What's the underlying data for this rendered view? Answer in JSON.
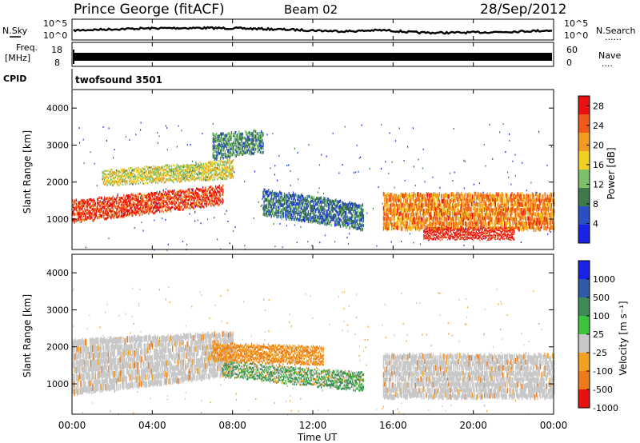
{
  "header": {
    "station": "Prince George (fitACF)",
    "beam": "Beam 02",
    "date": "28/Sep/2012"
  },
  "nsky_panel": {
    "left_label": "N.Sky",
    "right_label": "N.Search",
    "left_ticks": [
      "10^5",
      "10^0"
    ],
    "right_ticks": [
      "10^5",
      "10^0"
    ],
    "right_dots": "......"
  },
  "freq_panel": {
    "left_label_1": "Freq.",
    "left_label_2": "[MHz]",
    "left_ticks": [
      "18",
      "8"
    ],
    "right_ticks": [
      "60",
      "0"
    ],
    "right_label": "Nave",
    "right_dots": "...."
  },
  "cpid_panel": {
    "label": "CPID",
    "program": "twofsound 3501"
  },
  "colors": {
    "power_scale": [
      "#1a22e8",
      "#2a4fc4",
      "#3e7a4a",
      "#7cc06a",
      "#f0d020",
      "#f39a20",
      "#ef5a1a",
      "#e81010"
    ],
    "velocity_scale": [
      "#1a22e8",
      "#2f5aa8",
      "#3f8a56",
      "#3cc43c",
      "#c8c8c8",
      "#f3a020",
      "#ee7a1a",
      "#e81010"
    ],
    "ground_scatter": "#c8c8c8"
  },
  "chart_data": [
    {
      "type": "heatmap",
      "title": "",
      "xlabel": "Time UT",
      "ylabel": "Slant Range [km]",
      "xlim": [
        "00:00",
        "24:00"
      ],
      "ylim": [
        180,
        4500
      ],
      "x_ticks": [
        "00:00",
        "04:00",
        "08:00",
        "12:00",
        "16:00",
        "20:00",
        "00:00"
      ],
      "y_ticks": [
        1000,
        2000,
        3000,
        4000
      ],
      "colorbar": {
        "label": "Power [dB]",
        "ticks": [
          4,
          8,
          12,
          16,
          20,
          24,
          28
        ],
        "range": [
          0,
          30
        ]
      },
      "features": [
        {
          "start_h": 0.0,
          "end_h": 7.5,
          "range_start": [
            900,
            1500
          ],
          "range_end": [
            1400,
            1900
          ],
          "dB": 26
        },
        {
          "start_h": 1.5,
          "end_h": 8.0,
          "range_start": [
            1900,
            2300
          ],
          "range_end": [
            2100,
            2600
          ],
          "dB": 16
        },
        {
          "start_h": 7.0,
          "end_h": 9.5,
          "range_start": [
            2600,
            3300
          ],
          "range_end": [
            2800,
            3400
          ],
          "dB": 10
        },
        {
          "start_h": 9.5,
          "end_h": 14.5,
          "range_start": [
            1100,
            1800
          ],
          "range_end": [
            700,
            1400
          ],
          "dB": 8
        },
        {
          "start_h": 15.5,
          "end_h": 24.0,
          "range_start": [
            700,
            1700
          ],
          "range_end": [
            700,
            1700
          ],
          "dB": 22
        },
        {
          "start_h": 17.5,
          "end_h": 22.0,
          "range_start": [
            450,
            750
          ],
          "range_end": [
            450,
            750
          ],
          "dB": 28
        }
      ]
    },
    {
      "type": "heatmap",
      "title": "",
      "xlabel": "Time UT",
      "ylabel": "Slant Range [km]",
      "xlim": [
        "00:00",
        "24:00"
      ],
      "ylim": [
        180,
        4500
      ],
      "x_ticks": [
        "00:00",
        "04:00",
        "08:00",
        "12:00",
        "16:00",
        "20:00",
        "00:00"
      ],
      "y_ticks": [
        1000,
        2000,
        3000,
        4000
      ],
      "colorbar": {
        "label": "Velocity [m s⁻¹]",
        "ticks": [
          1000,
          500,
          100,
          25,
          -25,
          -100,
          -500,
          -1000
        ]
      },
      "features": [
        {
          "start_h": 0.0,
          "end_h": 8.0,
          "range_start": [
            700,
            2200
          ],
          "range_end": [
            1200,
            2400
          ],
          "vel": 0,
          "ground": true
        },
        {
          "start_h": 7.0,
          "end_h": 12.5,
          "range_start": [
            1600,
            2100
          ],
          "range_end": [
            1500,
            2000
          ],
          "vel": -300
        },
        {
          "start_h": 7.5,
          "end_h": 14.5,
          "range_start": [
            1200,
            1600
          ],
          "range_end": [
            800,
            1300
          ],
          "vel": 50
        },
        {
          "start_h": 15.5,
          "end_h": 24.0,
          "range_start": [
            600,
            1800
          ],
          "range_end": [
            600,
            1800
          ],
          "vel": 0,
          "ground": true
        }
      ]
    }
  ]
}
